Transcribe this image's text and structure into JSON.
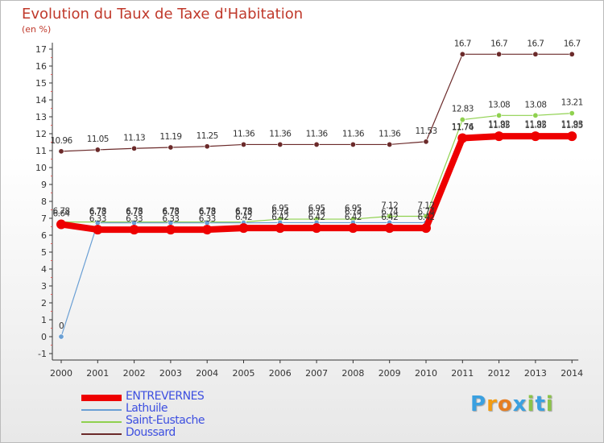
{
  "title": "Evolution du Taux de Taxe d'Habitation",
  "unit_label": "(en %)",
  "logo": {
    "text": "Proxiti",
    "letters": [
      "P",
      "r",
      "o",
      "x",
      "i",
      "t",
      "i"
    ],
    "colors": [
      "#3aa0e0",
      "#f39c12",
      "#e67e22",
      "#3aa0e0",
      "#8bc34a",
      "#3aa0e0",
      "#8bc34a"
    ]
  },
  "colors": {
    "entrevernes": "#ee0000",
    "lathuile": "#6a9fd4",
    "saint_eustache": "#8fd14f",
    "doussard": "#6b2a2a",
    "axis": "#333333",
    "grid": "#cccccc",
    "title": "#c0392b",
    "legend_text": "#3d4fe0"
  },
  "chart_data": {
    "type": "line",
    "title": "Evolution du Taux de Taxe d'Habitation",
    "ylabel": "(en %)",
    "xlabel": "",
    "ylim": [
      -1,
      17
    ],
    "y_ticks": [
      -1,
      0,
      1,
      2,
      3,
      4,
      5,
      6,
      7,
      8,
      9,
      10,
      11,
      12,
      13,
      14,
      15,
      16,
      17
    ],
    "grid": false,
    "legend_position": "bottom-left",
    "categories": [
      "2000",
      "2001",
      "2002",
      "2003",
      "2004",
      "2005",
      "2006",
      "2007",
      "2008",
      "2009",
      "2010",
      "2011",
      "2012",
      "2013",
      "2014"
    ],
    "series": [
      {
        "name": "ENTREVERNES",
        "key": "entrevernes",
        "values": [
          6.64,
          6.33,
          6.33,
          6.33,
          6.33,
          6.42,
          6.42,
          6.42,
          6.42,
          6.42,
          6.42,
          11.74,
          11.85,
          11.85,
          11.85
        ],
        "labels": [
          "6.64",
          "6.33",
          "6.33",
          "6.33",
          "6.33",
          "6.42",
          "6.42",
          "6.42",
          "6.42",
          "6.42",
          "6.42",
          "11.74",
          "11.85",
          "11.85",
          "11.85"
        ]
      },
      {
        "name": "Lathuile",
        "key": "lathuile",
        "values": [
          0,
          6.73,
          6.73,
          6.73,
          6.73,
          6.73,
          6.74,
          6.74,
          6.74,
          6.74,
          6.74,
          11.76,
          11.92,
          11.92,
          11.93
        ],
        "labels": [
          "0",
          "6.73",
          "6.73",
          "6.73",
          "6.73",
          "6.73",
          "6.74",
          "6.74",
          "6.74",
          "6.74",
          "6.74",
          "11.76",
          "11.92",
          "11.92",
          "11.93"
        ]
      },
      {
        "name": "Saint-Eustache",
        "key": "saint_eustache",
        "values": [
          6.78,
          6.78,
          6.78,
          6.78,
          6.78,
          6.78,
          6.95,
          6.95,
          6.95,
          7.12,
          7.12,
          12.83,
          13.08,
          13.08,
          13.21
        ],
        "labels": [
          "6.78",
          "6.78",
          "6.78",
          "6.78",
          "6.78",
          "6.78",
          "6.95",
          "6.95",
          "6.95",
          "7.12",
          "7.12",
          "12.83",
          "13.08",
          "13.08",
          "13.21"
        ]
      },
      {
        "name": "Doussard",
        "key": "doussard",
        "values": [
          10.96,
          11.05,
          11.13,
          11.19,
          11.25,
          11.36,
          11.36,
          11.36,
          11.36,
          11.36,
          11.53,
          16.7,
          16.7,
          16.7,
          16.7
        ],
        "labels": [
          "10.96",
          "11.05",
          "11.13",
          "11.19",
          "11.25",
          "11.36",
          "11.36",
          "11.36",
          "11.36",
          "11.36",
          "11.53",
          "16.7",
          "16.7",
          "16.7",
          "16.7"
        ]
      }
    ]
  }
}
